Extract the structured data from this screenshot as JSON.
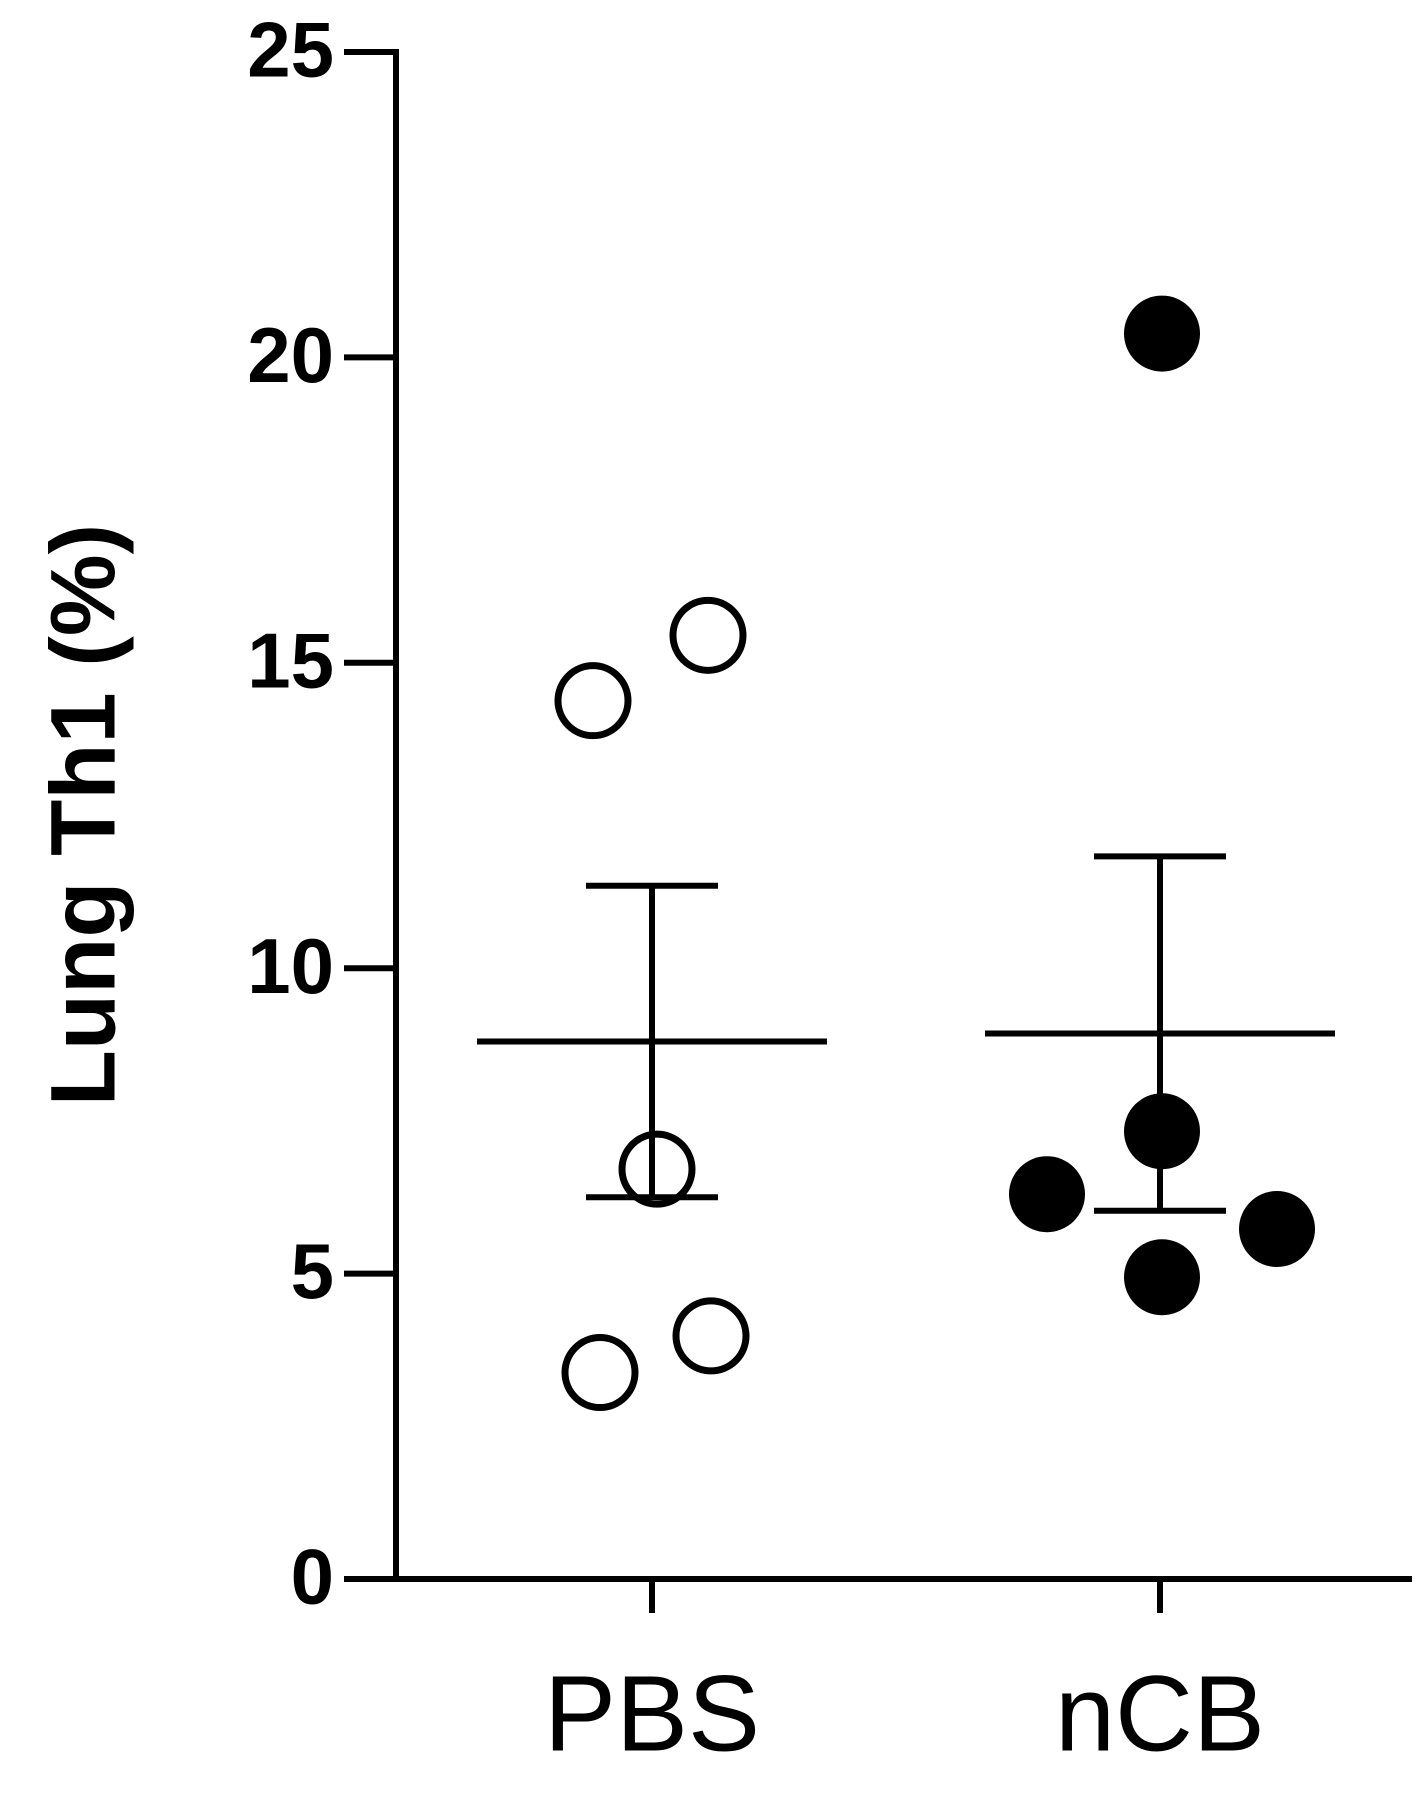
{
  "chart_data": {
    "type": "scatter",
    "y_label": "Lung Th1 (%)",
    "categories": [
      "PBS",
      "nCB"
    ],
    "series": [
      {
        "name": "PBS",
        "color": "#000000",
        "marker": "open",
        "values": [
          14.38,
          15.45,
          6.71,
          3.38,
          3.98
        ],
        "mean": 8.8,
        "error": 2.55
      },
      {
        "name": "nCB",
        "color": "#000000",
        "marker": "filled",
        "values": [
          20.39,
          7.33,
          6.3,
          5.73,
          4.94
        ],
        "mean": 8.93,
        "error": 2.9
      }
    ],
    "ylim": [
      0,
      25
    ],
    "yticks": [
      0,
      5,
      10,
      15,
      20,
      25
    ]
  }
}
